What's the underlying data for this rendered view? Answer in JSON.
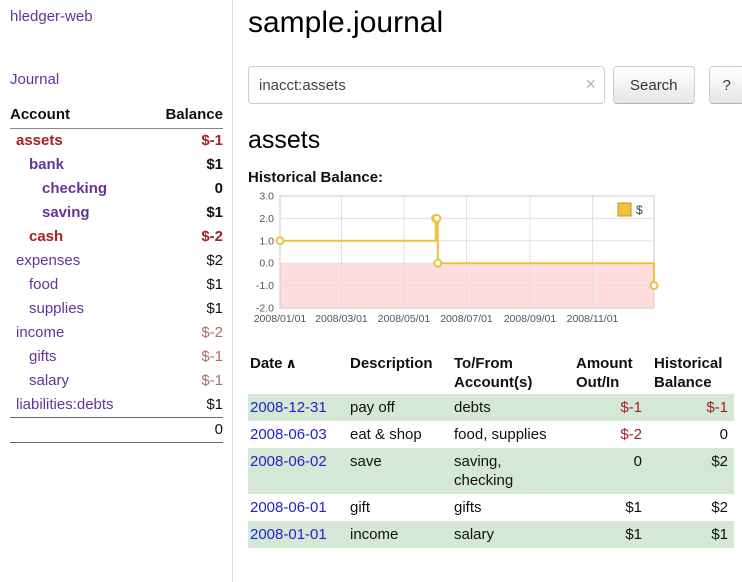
{
  "app": {
    "title": "hledger-web"
  },
  "colors": {
    "link_purple": "#663399",
    "link_blue": "#2222cc",
    "negative_strong": "#a22222",
    "negative_soft": "#b56a6a",
    "row_shade_green": "#d5e8d5",
    "chart_series_yellow": "#edc240",
    "chart_negative_region_pink": "#ffdddd"
  },
  "sidebar": {
    "journal_link": "Journal",
    "accounts": {
      "header_account": "Account",
      "header_balance": "Balance",
      "rows": [
        {
          "name": "assets",
          "indent": 0,
          "bold": true,
          "name_negative": true,
          "balance": "$-1",
          "balance_negative": true
        },
        {
          "name": "bank",
          "indent": 1,
          "bold": true,
          "name_negative": false,
          "balance": "$1",
          "balance_negative": false
        },
        {
          "name": "checking",
          "indent": 2,
          "bold": true,
          "name_negative": false,
          "balance": "0",
          "balance_negative": false
        },
        {
          "name": "saving",
          "indent": 2,
          "bold": true,
          "name_negative": false,
          "balance": "$1",
          "balance_negative": false
        },
        {
          "name": "cash",
          "indent": 1,
          "bold": true,
          "name_negative": true,
          "balance": "$-2",
          "balance_negative": true
        },
        {
          "name": "expenses",
          "indent": 0,
          "bold": false,
          "name_negative": false,
          "balance": "$2",
          "balance_negative": false
        },
        {
          "name": "food",
          "indent": 1,
          "bold": false,
          "name_negative": false,
          "balance": "$1",
          "balance_negative": false
        },
        {
          "name": "supplies",
          "indent": 1,
          "bold": false,
          "name_negative": false,
          "balance": "$1",
          "balance_negative": false
        },
        {
          "name": "income",
          "indent": 0,
          "bold": false,
          "name_negative": false,
          "balance": "$-2",
          "balance_negative": true
        },
        {
          "name": "gifts",
          "indent": 1,
          "bold": false,
          "name_negative": false,
          "balance": "$-1",
          "balance_negative": true
        },
        {
          "name": "salary",
          "indent": 1,
          "bold": false,
          "name_negative": false,
          "balance": "$-1",
          "balance_negative": true
        },
        {
          "name": "liabilities:debts",
          "indent": 0,
          "bold": false,
          "name_negative": false,
          "balance": "$1",
          "balance_negative": false
        }
      ],
      "total": "0"
    }
  },
  "main": {
    "title": "sample.journal",
    "search": {
      "value": "inacct:assets",
      "clear_icon": "×",
      "button_label": "Search",
      "help_label": "?"
    },
    "account_heading": "assets",
    "chart_label": "Historical Balance:"
  },
  "chart_data": {
    "type": "line",
    "step": true,
    "title": "Historical Balance",
    "xlabel": "",
    "ylabel": "",
    "grid": true,
    "ylim": [
      -2,
      3
    ],
    "x_range": [
      "2008-01-01",
      "2008-12-31"
    ],
    "y_ticks": [
      {
        "label": "3.0",
        "value": 3
      },
      {
        "label": "2.0",
        "value": 2
      },
      {
        "label": "1.0",
        "value": 1
      },
      {
        "label": "0.0",
        "value": 0
      },
      {
        "label": "-1.0",
        "value": -1
      },
      {
        "label": "-2.0",
        "value": -2
      }
    ],
    "x_ticks": [
      {
        "label": "2008/01/01",
        "date": "2008-01-01"
      },
      {
        "label": "2008/03/01",
        "date": "2008-03-01"
      },
      {
        "label": "2008/05/01",
        "date": "2008-05-01"
      },
      {
        "label": "2008/07/01",
        "date": "2008-07-01"
      },
      {
        "label": "2008/09/01",
        "date": "2008-09-01"
      },
      {
        "label": "2008/11/01",
        "date": "2008-11-01"
      }
    ],
    "legend": {
      "position": "top-right",
      "entries": [
        {
          "label": "$",
          "color": "#edc240"
        }
      ]
    },
    "negative_region_color": "#ffdddd",
    "series": [
      {
        "name": "$",
        "color": "#edc240",
        "points": [
          {
            "x": "2008-01-01",
            "y": 1
          },
          {
            "x": "2008-06-01",
            "y": 2
          },
          {
            "x": "2008-06-02",
            "y": 2
          },
          {
            "x": "2008-06-03",
            "y": 0
          },
          {
            "x": "2008-12-31",
            "y": -1
          }
        ]
      }
    ]
  },
  "register": {
    "headers": {
      "date": "Date",
      "sort_indicator": "∧",
      "description": "Description",
      "accounts": "To/From Account(s)",
      "amount": "Amount Out/In",
      "balance": "Historical Balance"
    },
    "rows": [
      {
        "date": "2008-12-31",
        "description": "pay off",
        "accounts": "debts",
        "amount": "$-1",
        "amount_negative": true,
        "balance": "$-1",
        "balance_negative": true,
        "shaded": true
      },
      {
        "date": "2008-06-03",
        "description": "eat & shop",
        "accounts": "food, supplies",
        "amount": "$-2",
        "amount_negative": true,
        "balance": "0",
        "balance_negative": false,
        "shaded": false
      },
      {
        "date": "2008-06-02",
        "description": "save",
        "accounts": "saving, checking",
        "amount": "0",
        "amount_negative": false,
        "balance": "$2",
        "balance_negative": false,
        "shaded": true
      },
      {
        "date": "2008-06-01",
        "description": "gift",
        "accounts": "gifts",
        "amount": "$1",
        "amount_negative": false,
        "balance": "$2",
        "balance_negative": false,
        "shaded": false
      },
      {
        "date": "2008-01-01",
        "description": "income",
        "accounts": "salary",
        "amount": "$1",
        "amount_negative": false,
        "balance": "$1",
        "balance_negative": false,
        "shaded": true
      }
    ]
  }
}
